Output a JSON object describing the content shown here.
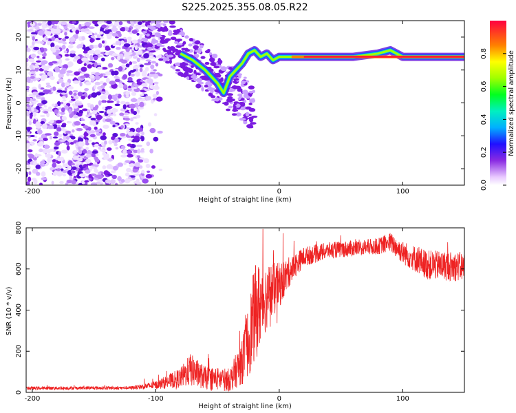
{
  "title": "S225.2025.355.08.05.R22",
  "chart_data": [
    {
      "type": "heatmap",
      "xlabel": "Height of straight line (km)",
      "ylabel": "Frequency (Hz)",
      "xlim": [
        -205,
        150
      ],
      "ylim": [
        -25,
        25
      ],
      "xticks": [
        -200,
        -100,
        0,
        100
      ],
      "xtick_labels": [
        "-200",
        "-100",
        "0",
        "100"
      ],
      "yticks": [
        -20,
        -10,
        0,
        10,
        20
      ],
      "ytick_labels": [
        "-20",
        "-10",
        "0",
        "10",
        "20"
      ],
      "colorbar": {
        "label": "Normalized spectral amplitude",
        "range": [
          0,
          1
        ],
        "ticks": [
          0,
          0.2,
          0.4,
          0.6,
          0.8
        ],
        "tick_labels": [
          "0.0",
          "0.2",
          "0.4",
          "0.6",
          "0.8"
        ]
      },
      "ridge": {
        "description": "carrier tone trace",
        "x": [
          -80,
          -70,
          -60,
          -50,
          -45,
          -40,
          -35,
          -30,
          -25,
          -20,
          -15,
          -10,
          -5,
          0,
          10,
          20,
          40,
          60,
          80,
          90,
          100,
          120,
          150
        ],
        "y": [
          15,
          13,
          10,
          6,
          3,
          8,
          10,
          12,
          15,
          16,
          14,
          15,
          13,
          14,
          14,
          14,
          14,
          14,
          15,
          16,
          14,
          14,
          14
        ]
      }
    },
    {
      "type": "line",
      "xlabel": "Height of straight line (km)",
      "ylabel": "SNR (10 * v/v)",
      "xlim": [
        -205,
        150
      ],
      "ylim": [
        0,
        800
      ],
      "xticks": [
        -200,
        -100,
        0,
        100
      ],
      "xtick_labels": [
        "-200",
        "-100",
        "0",
        "100"
      ],
      "yticks": [
        0,
        200,
        400,
        600,
        800
      ],
      "ytick_labels": [
        "0",
        "200",
        "400",
        "600",
        "800"
      ],
      "series": [
        {
          "name": "SNR",
          "color": "#ee2222",
          "envelope_x": [
            -205,
            -120,
            -100,
            -80,
            -72,
            -60,
            -40,
            -30,
            -25,
            -20,
            -15,
            -10,
            0,
            10,
            20,
            40,
            60,
            80,
            90,
            100,
            120,
            150
          ],
          "envelope_y": [
            20,
            22,
            35,
            70,
            110,
            70,
            60,
            150,
            250,
            380,
            430,
            470,
            520,
            600,
            660,
            690,
            700,
            710,
            730,
            680,
            620,
            610
          ],
          "spread": [
            10,
            10,
            25,
            60,
            100,
            70,
            70,
            140,
            220,
            300,
            260,
            200,
            140,
            80,
            60,
            50,
            50,
            50,
            60,
            70,
            90,
            90
          ]
        }
      ]
    }
  ]
}
